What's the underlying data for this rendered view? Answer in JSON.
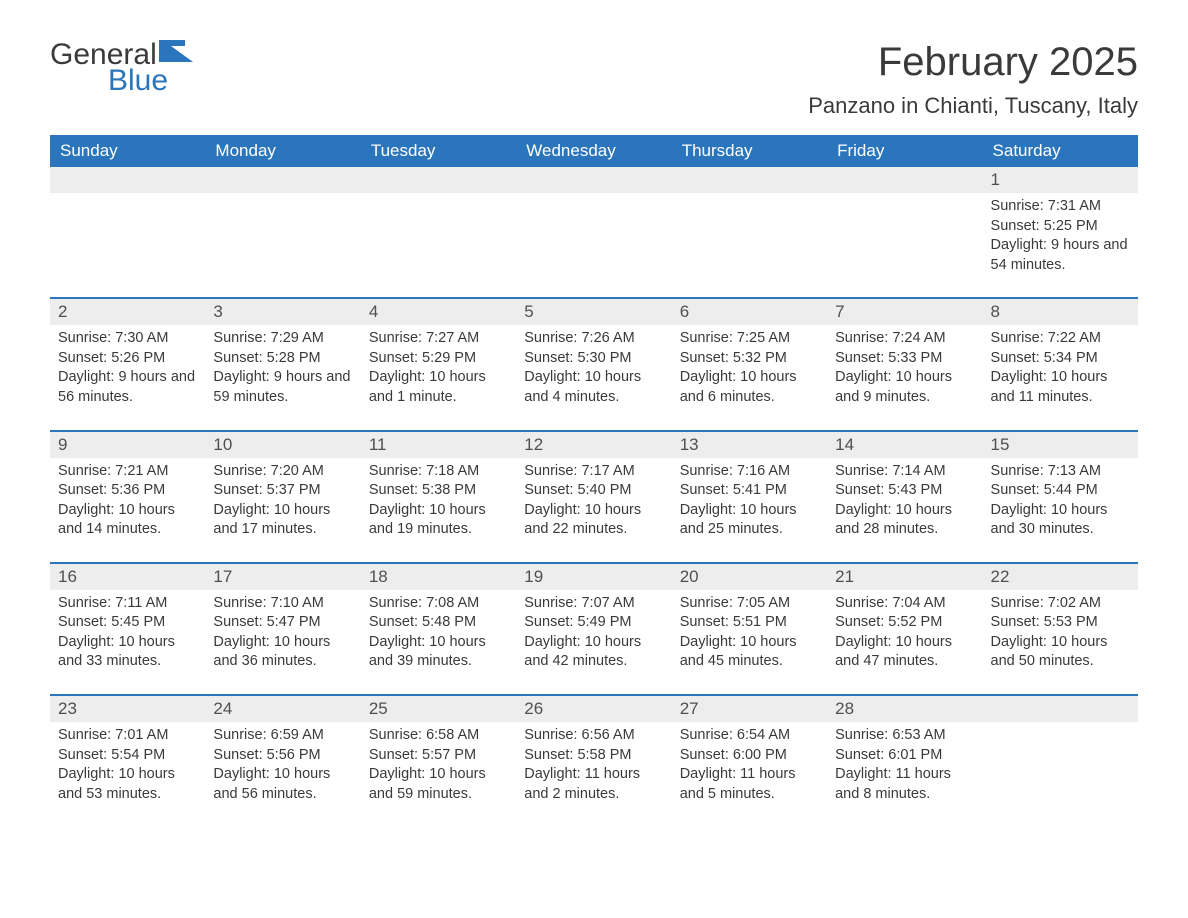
{
  "brand": {
    "part1": "General",
    "part2": "Blue",
    "flag_color": "#2a75bb"
  },
  "title": "February 2025",
  "location": "Panzano in Chianti, Tuscany, Italy",
  "colors": {
    "header_bg": "#2a75bb",
    "header_text": "#ffffff",
    "daynum_bg": "#ededed",
    "row_divider": "#2a75bb",
    "body_text": "#3a3a3a"
  },
  "weekdays": [
    "Sunday",
    "Monday",
    "Tuesday",
    "Wednesday",
    "Thursday",
    "Friday",
    "Saturday"
  ],
  "labels": {
    "sunrise": "Sunrise: ",
    "sunset": "Sunset: ",
    "daylight": "Daylight: "
  },
  "weeks": [
    [
      null,
      null,
      null,
      null,
      null,
      null,
      {
        "n": "1",
        "sunrise": "7:31 AM",
        "sunset": "5:25 PM",
        "daylight": "9 hours and 54 minutes."
      }
    ],
    [
      {
        "n": "2",
        "sunrise": "7:30 AM",
        "sunset": "5:26 PM",
        "daylight": "9 hours and 56 minutes."
      },
      {
        "n": "3",
        "sunrise": "7:29 AM",
        "sunset": "5:28 PM",
        "daylight": "9 hours and 59 minutes."
      },
      {
        "n": "4",
        "sunrise": "7:27 AM",
        "sunset": "5:29 PM",
        "daylight": "10 hours and 1 minute."
      },
      {
        "n": "5",
        "sunrise": "7:26 AM",
        "sunset": "5:30 PM",
        "daylight": "10 hours and 4 minutes."
      },
      {
        "n": "6",
        "sunrise": "7:25 AM",
        "sunset": "5:32 PM",
        "daylight": "10 hours and 6 minutes."
      },
      {
        "n": "7",
        "sunrise": "7:24 AM",
        "sunset": "5:33 PM",
        "daylight": "10 hours and 9 minutes."
      },
      {
        "n": "8",
        "sunrise": "7:22 AM",
        "sunset": "5:34 PM",
        "daylight": "10 hours and 11 minutes."
      }
    ],
    [
      {
        "n": "9",
        "sunrise": "7:21 AM",
        "sunset": "5:36 PM",
        "daylight": "10 hours and 14 minutes."
      },
      {
        "n": "10",
        "sunrise": "7:20 AM",
        "sunset": "5:37 PM",
        "daylight": "10 hours and 17 minutes."
      },
      {
        "n": "11",
        "sunrise": "7:18 AM",
        "sunset": "5:38 PM",
        "daylight": "10 hours and 19 minutes."
      },
      {
        "n": "12",
        "sunrise": "7:17 AM",
        "sunset": "5:40 PM",
        "daylight": "10 hours and 22 minutes."
      },
      {
        "n": "13",
        "sunrise": "7:16 AM",
        "sunset": "5:41 PM",
        "daylight": "10 hours and 25 minutes."
      },
      {
        "n": "14",
        "sunrise": "7:14 AM",
        "sunset": "5:43 PM",
        "daylight": "10 hours and 28 minutes."
      },
      {
        "n": "15",
        "sunrise": "7:13 AM",
        "sunset": "5:44 PM",
        "daylight": "10 hours and 30 minutes."
      }
    ],
    [
      {
        "n": "16",
        "sunrise": "7:11 AM",
        "sunset": "5:45 PM",
        "daylight": "10 hours and 33 minutes."
      },
      {
        "n": "17",
        "sunrise": "7:10 AM",
        "sunset": "5:47 PM",
        "daylight": "10 hours and 36 minutes."
      },
      {
        "n": "18",
        "sunrise": "7:08 AM",
        "sunset": "5:48 PM",
        "daylight": "10 hours and 39 minutes."
      },
      {
        "n": "19",
        "sunrise": "7:07 AM",
        "sunset": "5:49 PM",
        "daylight": "10 hours and 42 minutes."
      },
      {
        "n": "20",
        "sunrise": "7:05 AM",
        "sunset": "5:51 PM",
        "daylight": "10 hours and 45 minutes."
      },
      {
        "n": "21",
        "sunrise": "7:04 AM",
        "sunset": "5:52 PM",
        "daylight": "10 hours and 47 minutes."
      },
      {
        "n": "22",
        "sunrise": "7:02 AM",
        "sunset": "5:53 PM",
        "daylight": "10 hours and 50 minutes."
      }
    ],
    [
      {
        "n": "23",
        "sunrise": "7:01 AM",
        "sunset": "5:54 PM",
        "daylight": "10 hours and 53 minutes."
      },
      {
        "n": "24",
        "sunrise": "6:59 AM",
        "sunset": "5:56 PM",
        "daylight": "10 hours and 56 minutes."
      },
      {
        "n": "25",
        "sunrise": "6:58 AM",
        "sunset": "5:57 PM",
        "daylight": "10 hours and 59 minutes."
      },
      {
        "n": "26",
        "sunrise": "6:56 AM",
        "sunset": "5:58 PM",
        "daylight": "11 hours and 2 minutes."
      },
      {
        "n": "27",
        "sunrise": "6:54 AM",
        "sunset": "6:00 PM",
        "daylight": "11 hours and 5 minutes."
      },
      {
        "n": "28",
        "sunrise": "6:53 AM",
        "sunset": "6:01 PM",
        "daylight": "11 hours and 8 minutes."
      },
      null
    ]
  ]
}
